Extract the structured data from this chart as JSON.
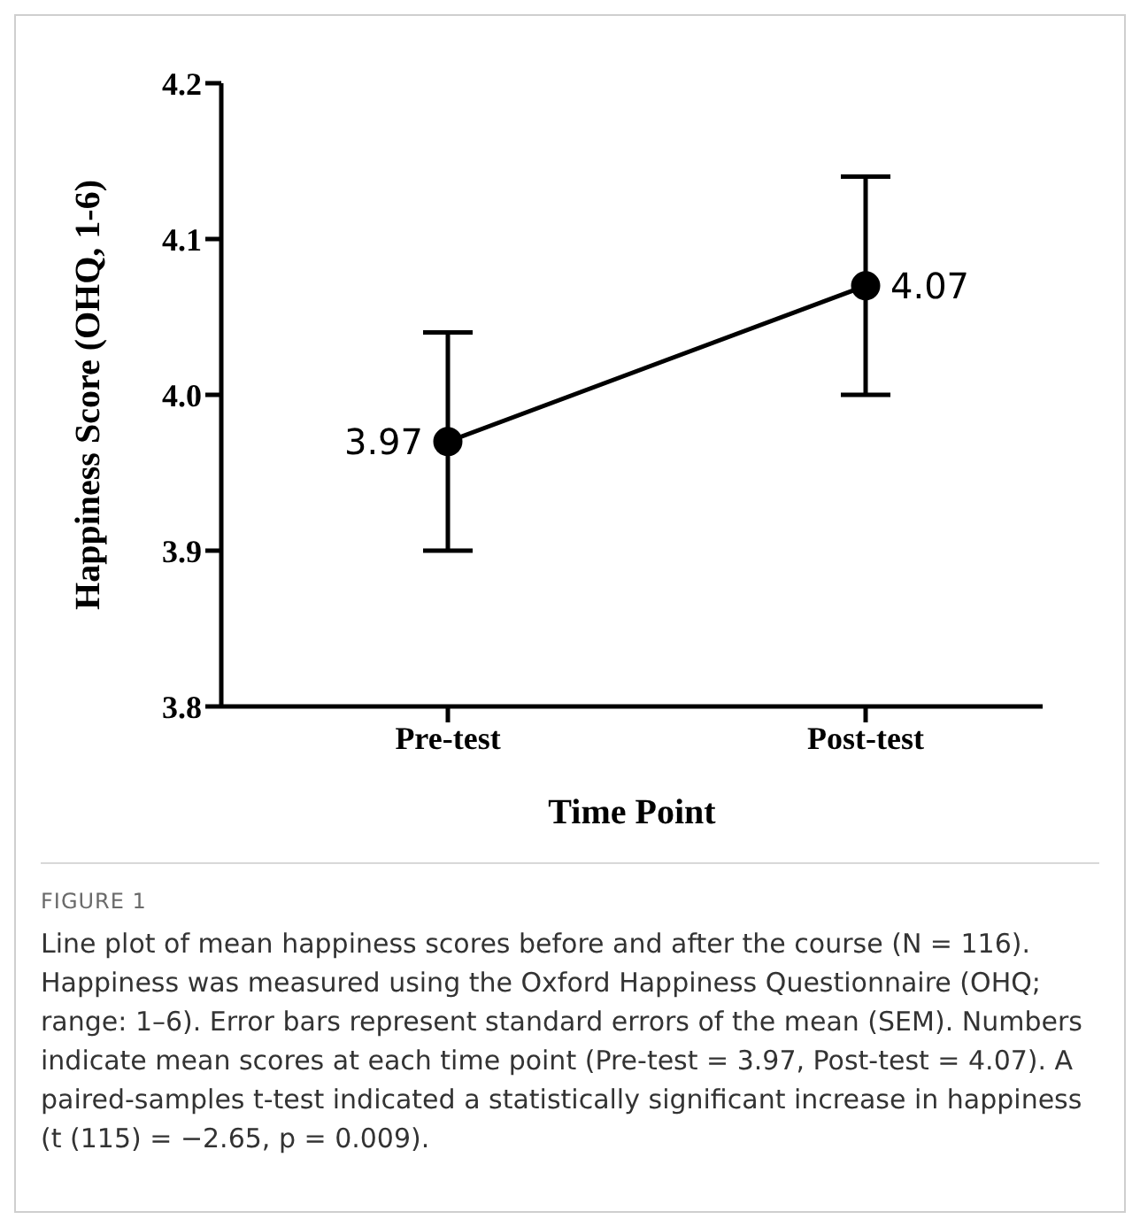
{
  "chart_data": {
    "type": "line",
    "xlabel": "Time Point",
    "ylabel": "Happiness Score (OHQ, 1-6)",
    "categories": [
      "Pre-test",
      "Post-test"
    ],
    "series": [
      {
        "color": "#000000",
        "values": [
          3.97,
          4.07
        ],
        "errors": [
          0.07,
          0.07
        ]
      }
    ],
    "ylim": [
      3.8,
      4.2
    ],
    "yticks": [
      3.8,
      3.9,
      {
        "value": 4,
        "label": "4.0"
      },
      4.1,
      4.2
    ],
    "marker": "circle",
    "line_style": "solid",
    "data_labels": true,
    "grid": false,
    "legend": false,
    "annotations": [
      "FIGURE 1",
      "Line plot of mean happiness scores before and after the course (N = 116). Happiness was measured using the Oxford Happiness Questionnaire (OHQ; range: 1–6). Error bars represent standard errors of the mean (SEM). Numbers indicate mean scores at each time point (Pre-test = 3.97, Post-test = 4.07). A paired-samples t-test indicated a statistically significant increase in happiness (t (115) = −2.65, p = 0.009)."
    ]
  }
}
